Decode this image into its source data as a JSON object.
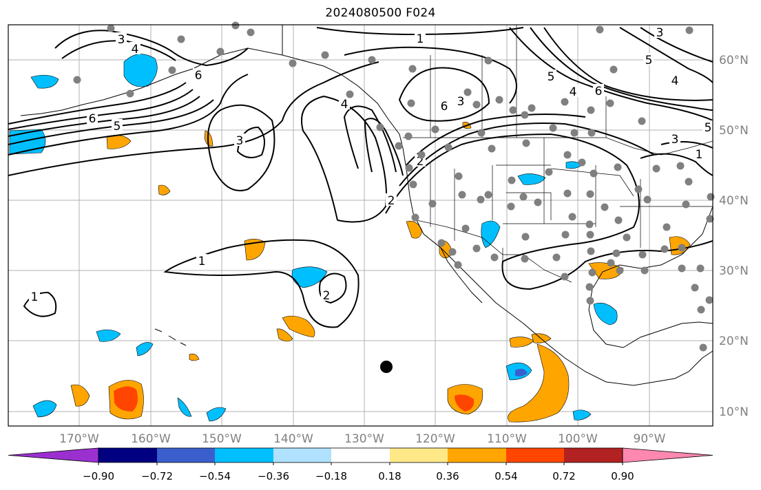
{
  "title": "2024080500 F024",
  "lon_labels": [
    "170°W",
    "160°W",
    "150°W",
    "140°W",
    "130°W",
    "120°W",
    "110°W",
    "100°W",
    "90°W"
  ],
  "lat_labels": [
    "60°N",
    "50°N",
    "40°N",
    "30°N",
    "20°N",
    "10°N"
  ],
  "contour_labels": [
    "1",
    "2",
    "3",
    "4",
    "5",
    "6"
  ],
  "colorbar": {
    "tick_labels": [
      "−0.90",
      "−0.72",
      "−0.54",
      "−0.36",
      "−0.18",
      "0.18",
      "0.36",
      "0.54",
      "0.72",
      "0.90"
    ],
    "colors": [
      "#9b30d0",
      "#000080",
      "#3a5fcd",
      "#00bfff",
      "#b0e2ff",
      "#ffffff",
      "#ffe888",
      "#ffa500",
      "#ff4500",
      "#b22222",
      "#ff88b0"
    ]
  },
  "colors": {
    "station_marker": "#808080",
    "coast": "#000000",
    "contour": "#000000",
    "grid": "#b0b0b0",
    "tick_label": "#808080"
  }
}
